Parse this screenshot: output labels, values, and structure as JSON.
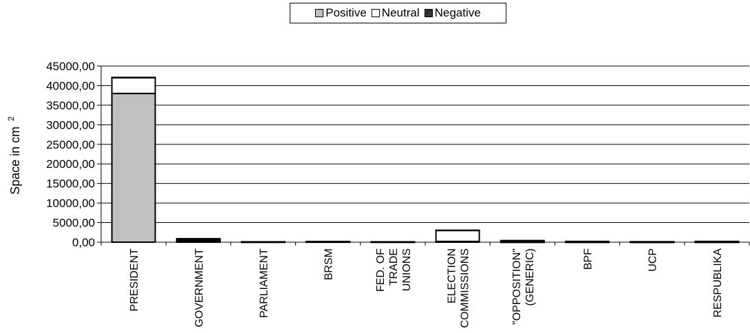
{
  "chart_data": {
    "type": "bar",
    "stacked": true,
    "ylabel": "Space  in cm",
    "ylabel_superscript": "2",
    "ylim": [
      0,
      45000
    ],
    "ytick_labels": [
      "0,00",
      "5000,00",
      "10000,00",
      "15000,00",
      "20000,00",
      "25000,00",
      "30000,00",
      "35000,00",
      "40000,00",
      "45000,00"
    ],
    "categories": [
      [
        "PRESIDENT"
      ],
      [
        "GOVERNMENT"
      ],
      [
        "PARLIAMENT"
      ],
      [
        "BRSM"
      ],
      [
        "FED. OF",
        "TRADE",
        "UNIONS"
      ],
      [
        "ELECTION",
        "COMMISSIONS"
      ],
      [
        "\"OPPOSITION\"",
        "(GENERIC)"
      ],
      [
        "BPF"
      ],
      [
        "UCP"
      ],
      [
        "RESPUBLIKA"
      ]
    ],
    "series": [
      {
        "name": "Positive",
        "color": "#c0c0c0",
        "values": [
          38000,
          200,
          30,
          60,
          30,
          200,
          20,
          20,
          10,
          20
        ]
      },
      {
        "name": "Neutral",
        "color": "#ffffff",
        "values": [
          4000,
          300,
          60,
          100,
          60,
          2800,
          100,
          80,
          60,
          60
        ]
      },
      {
        "name": "Negative",
        "color": "#333333",
        "values": [
          100,
          400,
          10,
          20,
          10,
          50,
          300,
          100,
          50,
          120
        ]
      }
    ],
    "grid": true,
    "legend_position": "top"
  }
}
